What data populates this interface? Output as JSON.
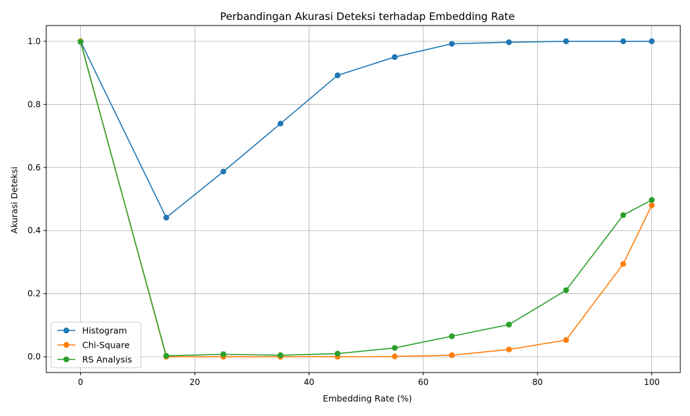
{
  "chart_data": {
    "type": "line",
    "title": "Perbandingan Akurasi Deteksi terhadap Embedding Rate",
    "xlabel": "Embedding Rate (%)",
    "ylabel": "Akurasi Deteksi",
    "x": [
      0,
      15,
      25,
      35,
      45,
      55,
      65,
      75,
      85,
      95,
      100
    ],
    "xlim": [
      -6,
      105
    ],
    "ylim": [
      -0.05,
      1.05
    ],
    "xticks": [
      0,
      20,
      40,
      60,
      80,
      100
    ],
    "xtick_labels": [
      "0",
      "20",
      "40",
      "60",
      "80",
      "100"
    ],
    "yticks": [
      0.0,
      0.2,
      0.4,
      0.6,
      0.8,
      1.0
    ],
    "ytick_labels": [
      "0.0",
      "0.2",
      "0.4",
      "0.6",
      "0.8",
      "1.0"
    ],
    "grid": true,
    "legend_position": "lower-left",
    "series": [
      {
        "name": "Histogram",
        "color": "#1f77b4",
        "values": [
          1.0,
          0.441,
          0.587,
          0.739,
          0.892,
          0.95,
          0.992,
          0.997,
          1.0,
          1.0,
          1.0
        ]
      },
      {
        "name": "Chi-Square",
        "color": "#ff7f0e",
        "values": [
          1.0,
          0.0,
          0.0,
          0.0,
          0.0,
          0.001,
          0.005,
          0.023,
          0.053,
          0.294,
          0.48
        ]
      },
      {
        "name": "RS Analysis",
        "color": "#2ca02c",
        "values": [
          0.998,
          0.003,
          0.008,
          0.005,
          0.01,
          0.028,
          0.065,
          0.102,
          0.211,
          0.449,
          0.497
        ]
      }
    ]
  }
}
